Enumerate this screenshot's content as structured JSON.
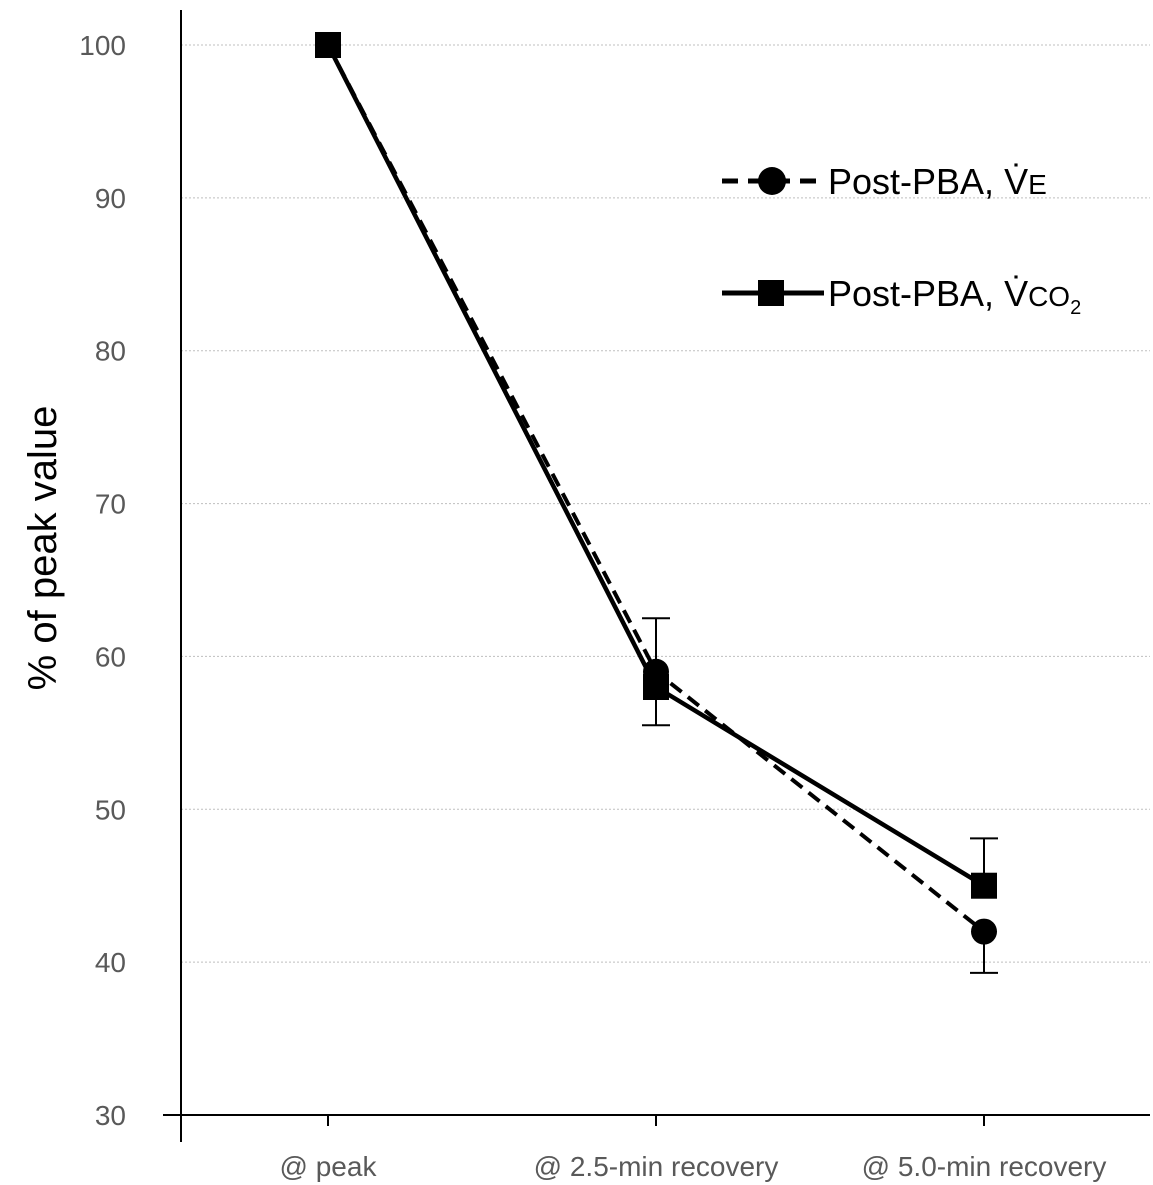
{
  "chart_data": {
    "type": "line",
    "title": "",
    "xlabel": "",
    "ylabel": "% of peak value",
    "ylim": [
      30,
      100
    ],
    "yticks": [
      30,
      40,
      50,
      60,
      70,
      80,
      90,
      100
    ],
    "grid": true,
    "legend_position": "top-right",
    "categories": [
      "@ peak",
      "@ 2.5-min recovery",
      "@ 5.0-min recovery"
    ],
    "series": [
      {
        "name": "Post-PBA, V̇E",
        "name_main": "Post-PBA, V̇",
        "name_sub": "E",
        "marker": "circle",
        "line_style": "dashed",
        "values": [
          100,
          59,
          42
        ],
        "error_high": [
          null,
          62.5,
          null
        ],
        "error_low": [
          null,
          null,
          39.3
        ]
      },
      {
        "name": "Post-PBA, V̇CO2",
        "name_main": "Post-PBA, V̇",
        "name_sub": "CO",
        "name_subscript": "2",
        "marker": "square",
        "line_style": "solid",
        "values": [
          100,
          58,
          45
        ],
        "error_high": [
          null,
          null,
          48.1
        ],
        "error_low": [
          null,
          55.5,
          null
        ]
      }
    ],
    "colors": {
      "line": "#000000",
      "grid": "#bfbfbf",
      "tick_text": "#595959"
    }
  }
}
